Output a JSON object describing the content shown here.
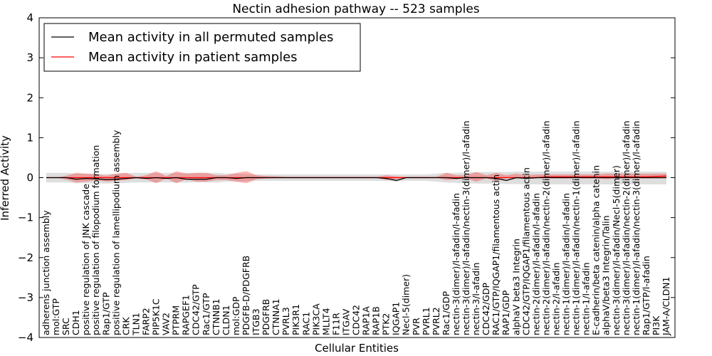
{
  "chart_data": {
    "type": "line",
    "title": "Nectin adhesion pathway -- 523 samples",
    "xlabel": "Cellular Entities",
    "ylabel": "Inferred Activity",
    "ylim": [
      -4,
      4
    ],
    "yticks": [
      "4",
      "3",
      "2",
      "1",
      "0",
      "−1",
      "−2",
      "−3",
      "−4"
    ],
    "grid": false,
    "legend_position": "top-left",
    "categories": [
      "adherens junction assembly",
      "mol:GTP",
      "SRC",
      "CDH1",
      "positive regulation of JNK cascade",
      "positive regulation of filopodium formation",
      "Rap1/GTP",
      "positive regulation of lamellipodium assembly",
      "CRK",
      "TLN1",
      "FARP2",
      "PIP5K1C",
      "VAV2",
      "PTPRM",
      "RAPGEF1",
      "CDC42/GTP",
      "Rac1/GTP",
      "CTNNB1",
      "CLDN1",
      "mol:GDP",
      "PDGFB-D/PDGFRB",
      "ITGB3",
      "PDGFRB",
      "CTNNA1",
      "PVRL3",
      "PIK3R1",
      "RAC1",
      "PIK3CA",
      "MLLT4",
      "F11R",
      "ITGAV",
      "CDC42",
      "RAP1A",
      "RAP1B",
      "PTK2",
      "IQGAP1",
      "Necl-5(dimer)",
      "PVR",
      "PVRL1",
      "PVRL2",
      "Rac1/GDP",
      "nectin-3(dimer)/l-afadin/l-afadin",
      "nectin-3(dimer)/l-afadin/nectin-3(dimer)/l-afadin",
      "nectin-3/l-afadin",
      "CDC42/GDP",
      "RAC1/GTP/IQGAP1/filamentous actin",
      "RAP1/GDP",
      "alphaV beta3 Integrin",
      "CDC42/GTP/IQGAP1/filamentous actin",
      "nectin-2(dimer)/l-afadin/l-afadin",
      "nectin-2(dimer)/l-afadin/nectin-2(dimer)/l-afadin",
      "nectin-2/l-afadin",
      "nectin-1(dimer)/l-afadin/l-afadin",
      "nectin-1(dimer)/l-afadin/nectin-1(dimer)/l-afadin",
      "nectin-1/l-afadin",
      "E-cadherin/beta catenin/alpha catenin",
      "alphaV/beta3 Integrin/Talin",
      "nectin-3(dimer)/l-afadin/Necl-5(dimer)",
      "nectin-3(dimer)/l-afadin/nectin-2(dimer)/l-afadin",
      "nectin-1(dimer)/l-afadin/nectin-3(dimer)/l-afadin",
      "Rap1/GTP/l-afadin",
      "PI3K",
      "JAM-A/CLDN1"
    ],
    "series": [
      {
        "name": "Mean activity in all permuted samples",
        "color": "#000000",
        "values": [
          0.0,
          0.0,
          0.0,
          -0.04,
          -0.02,
          -0.03,
          -0.05,
          -0.04,
          -0.02,
          0.0,
          -0.02,
          0.0,
          -0.02,
          0.0,
          -0.04,
          -0.04,
          -0.04,
          0.0,
          0.0,
          -0.02,
          0.0,
          0.0,
          0.0,
          0.0,
          0.0,
          0.0,
          0.0,
          0.0,
          0.0,
          0.0,
          0.0,
          0.0,
          0.0,
          0.0,
          -0.02,
          -0.07,
          0.0,
          0.0,
          0.0,
          0.0,
          0.0,
          -0.02,
          0.0,
          0.0,
          0.0,
          -0.02,
          -0.07,
          0.0,
          -0.02,
          0.0,
          0.0,
          0.0,
          0.0,
          0.0,
          0.0,
          0.0,
          0.0,
          0.0,
          0.0,
          0.0,
          0.0,
          0.0,
          0.0
        ],
        "band_low": [
          -0.12,
          -0.12,
          -0.12,
          -0.14,
          -0.14,
          -0.14,
          -0.15,
          -0.14,
          -0.13,
          -0.12,
          -0.12,
          -0.12,
          -0.12,
          -0.12,
          -0.12,
          -0.12,
          -0.12,
          -0.12,
          -0.1,
          -0.1,
          -0.09,
          -0.08,
          -0.08,
          -0.08,
          -0.08,
          -0.08,
          -0.08,
          -0.08,
          -0.08,
          -0.08,
          -0.08,
          -0.08,
          -0.08,
          -0.08,
          -0.08,
          -0.1,
          -0.08,
          -0.08,
          -0.08,
          -0.1,
          -0.12,
          -0.13,
          -0.14,
          -0.15,
          -0.15,
          -0.15,
          -0.16,
          -0.16,
          -0.17,
          -0.17,
          -0.17,
          -0.17,
          -0.17,
          -0.17,
          -0.17,
          -0.17,
          -0.17,
          -0.17,
          -0.17,
          -0.17,
          -0.17,
          -0.17,
          -0.17
        ],
        "band_high": [
          0.12,
          0.12,
          0.12,
          0.1,
          0.1,
          0.1,
          0.09,
          0.1,
          0.11,
          0.12,
          0.12,
          0.12,
          0.12,
          0.12,
          0.12,
          0.12,
          0.12,
          0.12,
          0.1,
          0.1,
          0.09,
          0.08,
          0.08,
          0.08,
          0.08,
          0.08,
          0.08,
          0.08,
          0.08,
          0.08,
          0.08,
          0.08,
          0.08,
          0.08,
          0.08,
          0.08,
          0.08,
          0.08,
          0.08,
          0.1,
          0.12,
          0.12,
          0.13,
          0.14,
          0.14,
          0.14,
          0.14,
          0.15,
          0.15,
          0.15,
          0.15,
          0.15,
          0.15,
          0.15,
          0.15,
          0.15,
          0.15,
          0.15,
          0.15,
          0.15,
          0.15,
          0.15,
          0.15
        ]
      },
      {
        "name": "Mean activity in patient samples",
        "color": "#ff0000",
        "values": [
          0.0,
          0.0,
          0.0,
          0.0,
          0.0,
          0.0,
          0.0,
          0.0,
          0.0,
          0.0,
          0.0,
          0.0,
          0.0,
          0.0,
          0.0,
          0.0,
          0.0,
          0.0,
          0.0,
          0.0,
          0.0,
          0.0,
          0.0,
          0.0,
          0.0,
          0.0,
          0.0,
          0.0,
          0.0,
          0.0,
          0.0,
          0.0,
          0.0,
          0.0,
          0.0,
          0.0,
          0.0,
          0.0,
          0.0,
          0.0,
          0.0,
          0.0,
          0.0,
          0.0,
          0.0,
          0.0,
          0.0,
          0.0,
          0.0,
          0.0,
          0.02,
          0.02,
          0.02,
          0.02,
          0.02,
          0.02,
          0.02,
          0.02,
          0.02,
          0.02,
          0.02,
          0.03,
          0.04
        ],
        "band_low": [
          0.0,
          0.0,
          -0.05,
          -0.12,
          -0.1,
          -0.06,
          -0.1,
          -0.08,
          -0.06,
          -0.02,
          -0.04,
          -0.14,
          -0.02,
          -0.14,
          -0.04,
          -0.1,
          -0.1,
          -0.06,
          -0.06,
          -0.1,
          -0.14,
          -0.04,
          -0.02,
          -0.01,
          0.0,
          0.0,
          0.0,
          0.0,
          0.0,
          0.0,
          0.0,
          0.0,
          0.0,
          0.0,
          -0.06,
          -0.03,
          0.0,
          0.0,
          0.0,
          0.0,
          -0.06,
          -0.04,
          -0.02,
          -0.1,
          -0.02,
          -0.08,
          -0.02,
          -0.02,
          -0.03,
          -0.02,
          -0.02,
          -0.02,
          -0.02,
          -0.02,
          -0.02,
          -0.02,
          -0.04,
          -0.02,
          -0.02,
          -0.02,
          -0.02,
          -0.02,
          -0.02
        ],
        "band_high": [
          0.0,
          0.0,
          0.05,
          0.12,
          0.1,
          0.08,
          0.05,
          0.1,
          0.12,
          0.02,
          0.06,
          0.16,
          0.04,
          0.16,
          0.1,
          0.12,
          0.12,
          0.06,
          0.06,
          0.12,
          0.16,
          0.06,
          0.04,
          0.03,
          0.02,
          0.02,
          0.02,
          0.02,
          0.02,
          0.02,
          0.02,
          0.02,
          0.02,
          0.02,
          0.06,
          0.03,
          0.02,
          0.02,
          0.02,
          0.02,
          0.12,
          0.06,
          0.06,
          0.14,
          0.06,
          0.12,
          0.06,
          0.1,
          0.06,
          0.08,
          0.08,
          0.08,
          0.08,
          0.08,
          0.08,
          0.08,
          0.1,
          0.1,
          0.1,
          0.1,
          0.1,
          0.1,
          0.1
        ]
      }
    ]
  }
}
